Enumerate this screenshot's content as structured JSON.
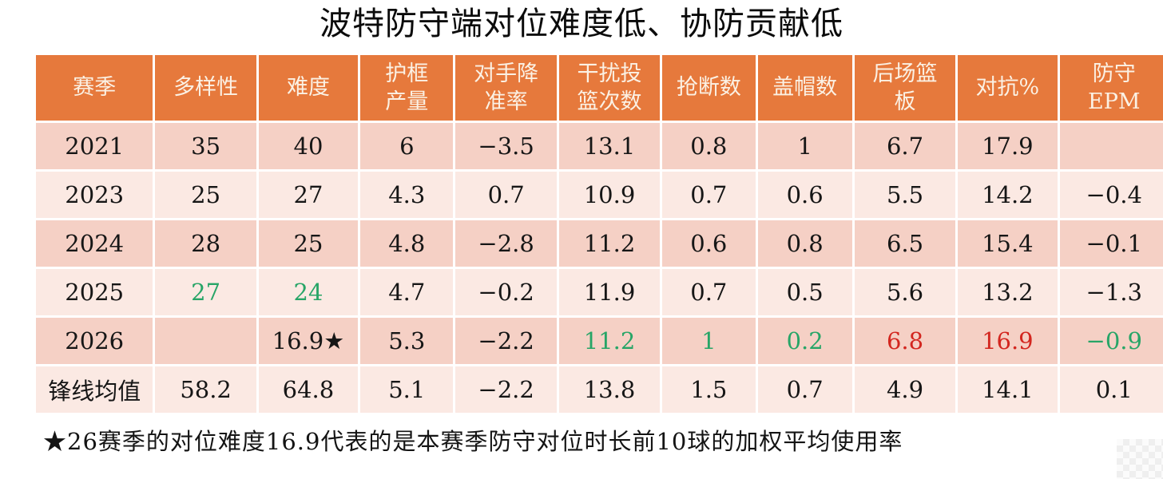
{
  "title": "波特防守端对位难度低、协防贡献低",
  "footnote": "★26赛季的对位难度16.9代表的是本赛季防守对位时长前10球的加权平均使用率",
  "colors": {
    "header_bg": "#E6793C",
    "header_text": "#FBF1E4",
    "row_dark": "#F5D0C5",
    "row_light": "#FBE9E3",
    "green": "#27A567",
    "red": "#D3261F",
    "text": "#161616"
  },
  "chart_data": {
    "type": "table",
    "columns": [
      "赛季",
      "多样性",
      "难度",
      "护框\n产量",
      "对手降\n准率",
      "干扰投\n篮次数",
      "抢断数",
      "盖帽数",
      "后场篮\n板",
      "对抗%",
      "防守\nEPM"
    ],
    "rows": [
      {
        "shade": "dark",
        "cells": [
          {
            "t": "2021"
          },
          {
            "t": "35"
          },
          {
            "t": "40"
          },
          {
            "t": "6"
          },
          {
            "t": "−3.5"
          },
          {
            "t": "13.1"
          },
          {
            "t": "0.8"
          },
          {
            "t": "1"
          },
          {
            "t": "6.7"
          },
          {
            "t": "17.9"
          },
          {
            "t": ""
          }
        ]
      },
      {
        "shade": "light",
        "cells": [
          {
            "t": "2023"
          },
          {
            "t": "25"
          },
          {
            "t": "27"
          },
          {
            "t": "4.3"
          },
          {
            "t": "0.7"
          },
          {
            "t": "10.9"
          },
          {
            "t": "0.7"
          },
          {
            "t": "0.6"
          },
          {
            "t": "5.5"
          },
          {
            "t": "14.2"
          },
          {
            "t": "−0.4"
          }
        ]
      },
      {
        "shade": "dark",
        "cells": [
          {
            "t": "2024"
          },
          {
            "t": "28"
          },
          {
            "t": "25"
          },
          {
            "t": "4.8"
          },
          {
            "t": "−2.8"
          },
          {
            "t": "11.2"
          },
          {
            "t": "0.6"
          },
          {
            "t": "0.8"
          },
          {
            "t": "6.5"
          },
          {
            "t": "15.4"
          },
          {
            "t": "−0.1"
          }
        ]
      },
      {
        "shade": "light",
        "cells": [
          {
            "t": "2025"
          },
          {
            "t": "27",
            "c": "green"
          },
          {
            "t": "24",
            "c": "green"
          },
          {
            "t": "4.7"
          },
          {
            "t": "−0.2"
          },
          {
            "t": "11.9"
          },
          {
            "t": "0.7"
          },
          {
            "t": "0.5"
          },
          {
            "t": "5.6"
          },
          {
            "t": "13.2"
          },
          {
            "t": "−1.3"
          }
        ]
      },
      {
        "shade": "dark",
        "cells": [
          {
            "t": "2026"
          },
          {
            "t": ""
          },
          {
            "t": "16.9★"
          },
          {
            "t": "5.3"
          },
          {
            "t": "−2.2"
          },
          {
            "t": "11.2",
            "c": "green"
          },
          {
            "t": "1",
            "c": "green"
          },
          {
            "t": "0.2",
            "c": "green"
          },
          {
            "t": "6.8",
            "c": "red"
          },
          {
            "t": "16.9",
            "c": "red"
          },
          {
            "t": "−0.9",
            "c": "green"
          }
        ]
      },
      {
        "shade": "light",
        "cells": [
          {
            "t": "锋线均值"
          },
          {
            "t": "58.2"
          },
          {
            "t": "64.8"
          },
          {
            "t": "5.1"
          },
          {
            "t": "−2.2"
          },
          {
            "t": "13.8"
          },
          {
            "t": "1.5"
          },
          {
            "t": "0.7"
          },
          {
            "t": "4.9"
          },
          {
            "t": "14.1"
          },
          {
            "t": "0.1"
          }
        ]
      }
    ]
  }
}
